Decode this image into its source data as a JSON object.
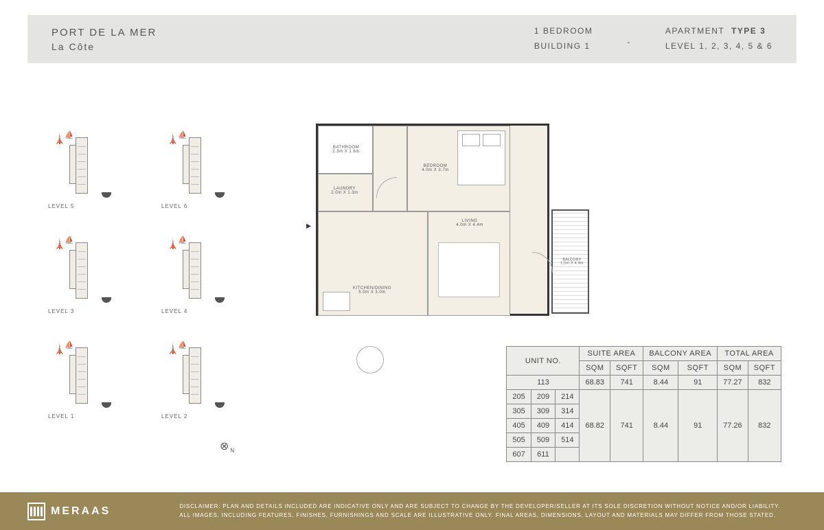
{
  "header": {
    "project": "PORT DE LA MER",
    "subproject": "La  Côte",
    "unit_type": "1 BEDROOM",
    "building": "BUILDING 1",
    "apt_label": "APARTMENT",
    "apt_type": "TYPE 3",
    "level_label": "LEVEL 1, 2, 3, 4, 5 & 6",
    "dash": "-"
  },
  "levels": [
    {
      "a": "LEVEL 5",
      "b": "LEVEL 6"
    },
    {
      "a": "LEVEL 3",
      "b": "LEVEL 4"
    },
    {
      "a": "LEVEL 1",
      "b": "LEVEL 2"
    }
  ],
  "rooms": {
    "bathroom": "BATHROOM",
    "bathroom_dim": "2.3m X 1.6m",
    "laundry": "LAUNDRY",
    "laundry_dim": "2.0m X 1.3m",
    "bedroom": "BEDROOM",
    "bedroom_dim": "4.0m X 3.7m",
    "living": "LIVING",
    "living_dim": "4.0m X 4.4m",
    "kitchen": "KITCHEN/DINING",
    "kitchen_dim": "5.0m X 3.0m",
    "balcony": "BALCONY",
    "balcony_dim": "1.5m X 4.4m"
  },
  "table": {
    "headers": {
      "unit": "UNIT NO.",
      "suite": "SUITE AREA",
      "balcony": "BALCONY AREA",
      "total": "TOTAL AREA",
      "sqm": "SQM",
      "sqft": "SQFT"
    },
    "row1": {
      "units": "113",
      "suite_sqm": "68.83",
      "suite_sqft": "741",
      "balc_sqm": "8.44",
      "balc_sqft": "91",
      "tot_sqm": "77.27",
      "tot_sqft": "832"
    },
    "group": {
      "suite_sqm": "68.82",
      "suite_sqft": "741",
      "balc_sqm": "8.44",
      "balc_sqft": "91",
      "tot_sqm": "77.26",
      "tot_sqft": "832"
    },
    "unit_rows": [
      [
        "205",
        "209",
        "214"
      ],
      [
        "305",
        "309",
        "314"
      ],
      [
        "405",
        "409",
        "414"
      ],
      [
        "505",
        "509",
        "514"
      ],
      [
        "607",
        "611",
        ""
      ]
    ]
  },
  "footer": {
    "brand": "MERAAS",
    "disclaimer": "DISCLAIMER: PLAN AND DETAILS INCLUDED ARE INDICATIVE ONLY AND ARE SUBJECT TO CHANGE BY THE DEVELOPER/SELLER AT ITS SOLE DISCRETION WITHOUT NOTICE AND/OR LIABILITY. ALL IMAGES, INCLUDING FEATURES, FINISHES, FURNISHINGS AND SCALE ARE ILLUSTRATIVE ONLY. FINAL AREAS, DIMENSIONS, LAYOUT AND MATERIALS MAY DIFFER FROM THOSE STATED."
  },
  "colors": {
    "header_bg": "#e4e4e3",
    "plan_fill": "#f4efe5",
    "plan_wall": "#333333",
    "table_bg": "#ecece9",
    "footer_bg": "#9a8859",
    "text": "#555555"
  }
}
